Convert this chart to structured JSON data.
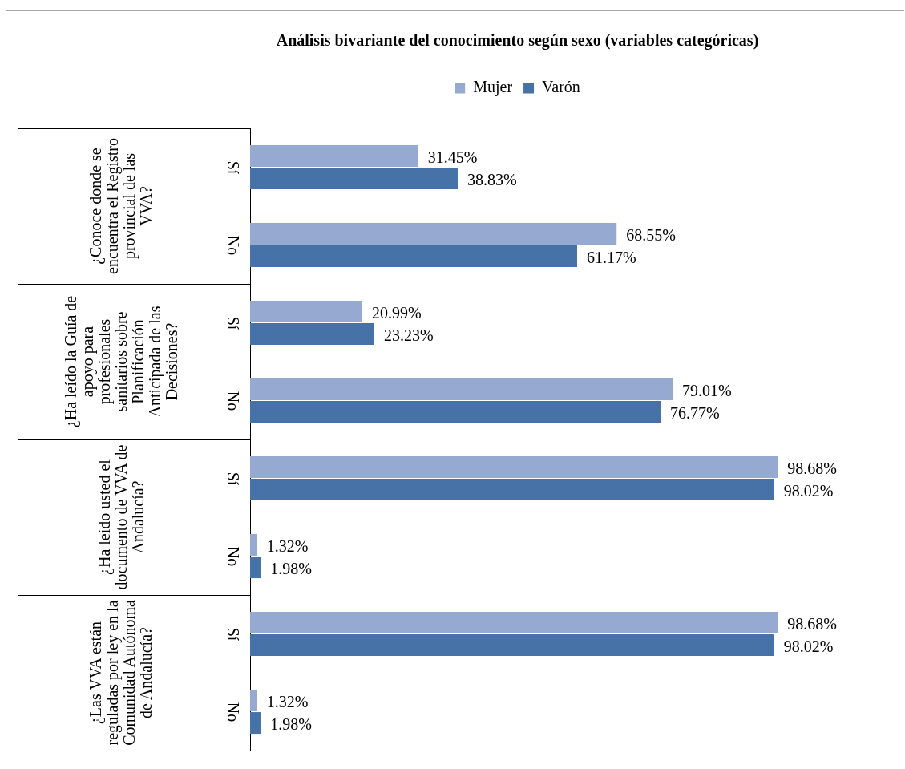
{
  "chart_data": {
    "type": "bar",
    "orientation": "horizontal",
    "title": "Análisis bivariante del conocimiento según sexo (variables categóricas)",
    "categories": [
      "Sí",
      "No",
      "Sí",
      "No",
      "Sí",
      "No",
      "Sí",
      "No"
    ],
    "series": [
      {
        "name": "Mujer",
        "color": "#95a9d1",
        "values": [
          31.45,
          68.55,
          20.99,
          79.01,
          98.68,
          1.32,
          98.68,
          1.32
        ],
        "value_labels": [
          "31.45%",
          "68.55%",
          "20.99%",
          "79.01%",
          "98.68%",
          "1.32%",
          "98.68%",
          "1.32%"
        ]
      },
      {
        "name": "Varón",
        "color": "#4672a8",
        "values": [
          38.83,
          61.17,
          23.23,
          76.77,
          98.02,
          1.98,
          98.02,
          1.98
        ],
        "value_labels": [
          "38.83%",
          "61.17%",
          "23.23%",
          "76.77%",
          "98.02%",
          "1.98%",
          "98.02%",
          "1.98%"
        ]
      }
    ],
    "annotations": [
      "¿Conoce donde se encuentra el Registro provincial de las VVA?",
      "¿Ha leído la Guía de apoyo para profesionales sanitarios sobre Planificación Anticipada de las Decisiones?",
      "¿Ha leído usted el documento de VVA de Andalucía?",
      "¿Las VVA están reguladas por ley en la Comunidad Autónoma de Andalucía?"
    ],
    "legend": "top",
    "grid": false
  }
}
